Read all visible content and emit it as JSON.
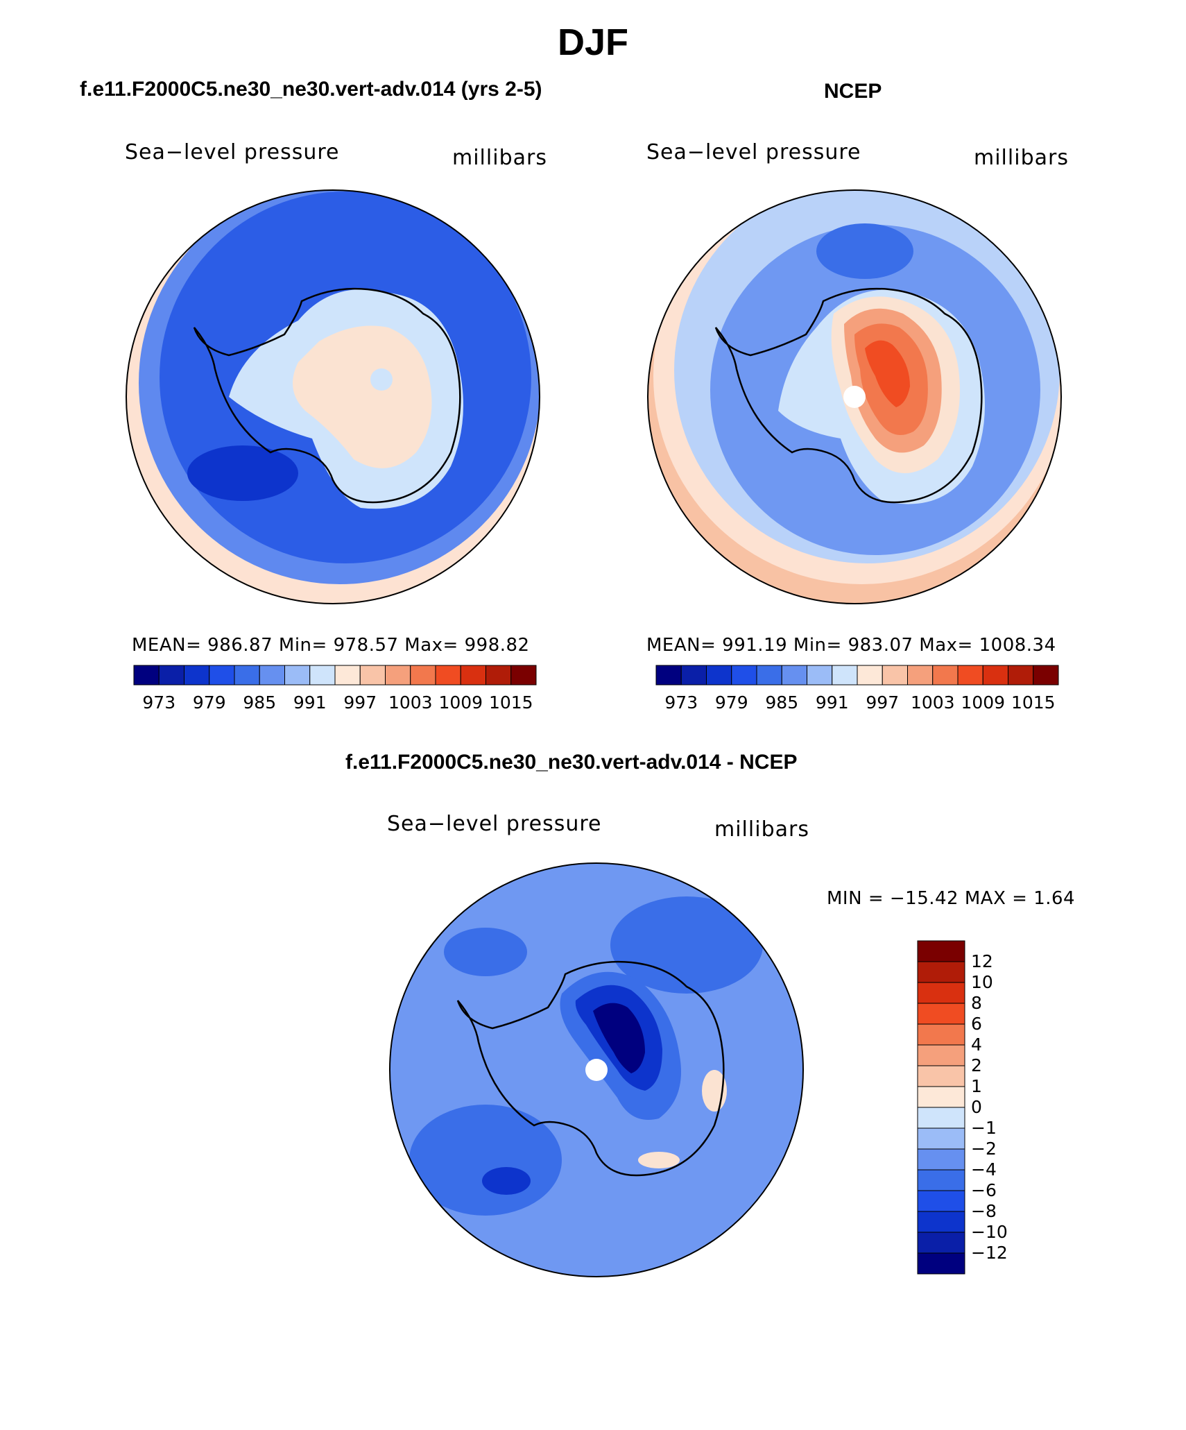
{
  "title": "DJF",
  "panels": {
    "model": {
      "title": "f.e11.F2000C5.ne30_ne30.vert-adv.014 (yrs 2-5)",
      "left_label": "Sea−level pressure",
      "right_label": "millibars",
      "stats": "MEAN= 986.87   Min= 978.57   Max= 998.82"
    },
    "obs": {
      "title": "NCEP",
      "left_label": "Sea−level pressure",
      "right_label": "millibars",
      "stats": "MEAN= 991.19   Min= 983.07   Max= 1008.34"
    },
    "diff": {
      "title": "f.e11.F2000C5.ne30_ne30.vert-adv.014 - NCEP",
      "left_label": "Sea−level pressure",
      "right_label": "millibars",
      "stats": "MIN = −15.42 MAX =    1.64"
    }
  },
  "colorbar_abs": {
    "colors": [
      "#00007f",
      "#0a1fa8",
      "#0d34cc",
      "#1f4fe8",
      "#3a6ee8",
      "#6690f0",
      "#9bbcf7",
      "#cfe4fb",
      "#fde8d8",
      "#f9c4a8",
      "#f5a07c",
      "#f2784d",
      "#f04c22",
      "#d93010",
      "#b01c08",
      "#7a0000"
    ],
    "tick_labels": [
      "973",
      "979",
      "985",
      "991",
      "997",
      "1003",
      "1009",
      "1015"
    ]
  },
  "colorbar_diff": {
    "colors": [
      "#00007f",
      "#0a1fa8",
      "#0d34cc",
      "#1f4fe8",
      "#3a6ee8",
      "#6690f0",
      "#9bbcf7",
      "#cfe4fb",
      "#fde8d8",
      "#f9c4a8",
      "#f5a07c",
      "#f2784d",
      "#f04c22",
      "#d93010",
      "#b01c08",
      "#7a0000"
    ],
    "tick_labels": [
      "−12",
      "−10",
      "−8",
      "−6",
      "−4",
      "−2",
      "−1",
      "0",
      "1",
      "2",
      "4",
      "6",
      "8",
      "10",
      "12"
    ]
  },
  "map_colors": {
    "ocean_model": "#2c5de6",
    "ocean_model_light": "#5f89ef",
    "ocean_obs": "#6f98f2",
    "ocean_obs_light": "#b9d2f9",
    "rim_warm": "#fde2d2",
    "rim_warm2": "#f8c2a4",
    "ice_light": "#cfe4fb",
    "ice_warm": "#fbe3d2",
    "high1": "#f5a07c",
    "high2": "#f2784d",
    "high3": "#f04c22",
    "diff_base": "#6f98f2",
    "diff_mid": "#3a6ee8",
    "diff_deep": "#0d34cc",
    "diff_core": "#00007f",
    "coast": "#000000"
  }
}
